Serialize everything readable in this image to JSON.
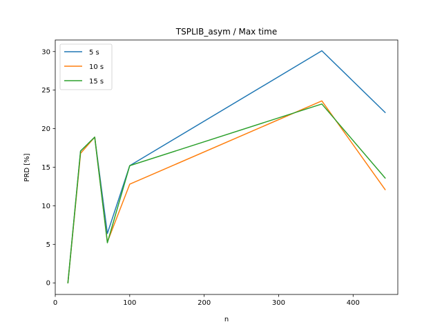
{
  "chart_data": {
    "type": "line",
    "title": "TSPLIB_asym / Max time",
    "xlabel": "n",
    "ylabel": "PRD [%]",
    "xlim": [
      0,
      460
    ],
    "ylim": [
      -1.5,
      31.5
    ],
    "xticks": [
      0,
      100,
      200,
      300,
      400
    ],
    "yticks": [
      0,
      5,
      10,
      15,
      20,
      25,
      30
    ],
    "grid": false,
    "legend_position": "top-left",
    "x": [
      17,
      34,
      53,
      70,
      100,
      358,
      443
    ],
    "series": [
      {
        "name": "5 s",
        "color": "#1f77b4",
        "values": [
          0.0,
          17.1,
          18.9,
          6.4,
          15.2,
          30.1,
          22.1
        ]
      },
      {
        "name": "10 s",
        "color": "#ff7f0e",
        "values": [
          0.0,
          16.8,
          18.9,
          5.3,
          12.8,
          23.6,
          12.1
        ]
      },
      {
        "name": "15 s",
        "color": "#2ca02c",
        "values": [
          0.0,
          17.1,
          18.9,
          5.2,
          15.2,
          23.2,
          13.6
        ]
      }
    ]
  }
}
